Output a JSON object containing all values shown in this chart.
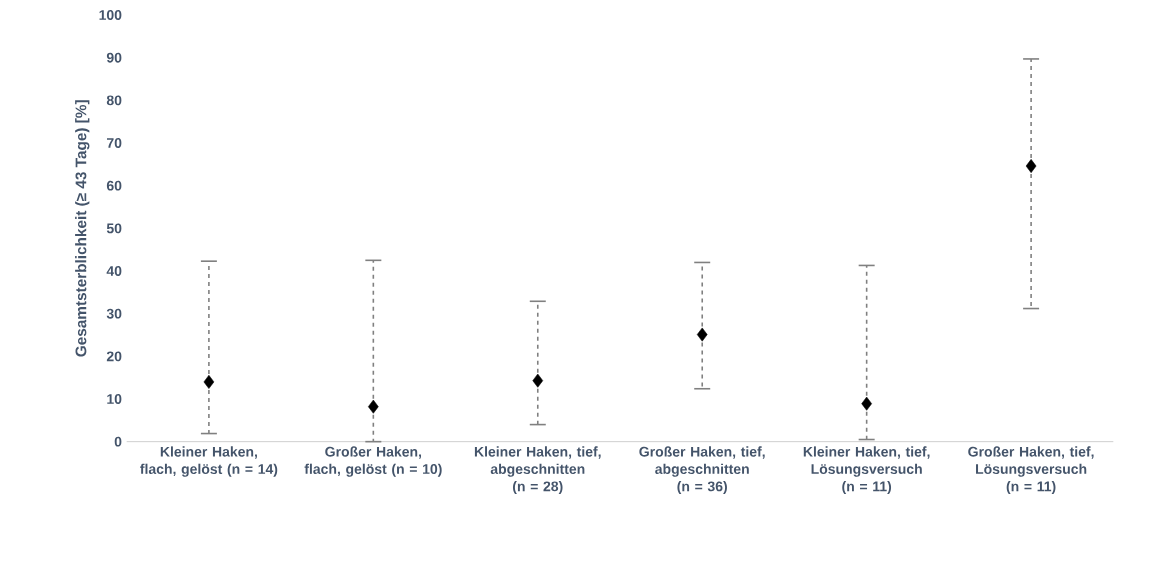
{
  "chart_data": {
    "type": "scatter",
    "ylabel": "Gesamtsterblichkeit (≥ 43 Tage)  [%]",
    "categories": [
      "Kleiner Haken, flach, gelöst (n = 14)",
      "Großer Haken, flach, gelöst (n = 10)",
      "Kleiner Haken, tief, abgeschnitten (n = 28)",
      "Großer Haken, tief, abgeschnitten (n = 36)",
      "Kleiner Haken, tief, Lösungsversuch (n = 11)",
      "Großer Haken, tief, Lösungsversuch (n = 11)"
    ],
    "series": [
      {
        "color": "#000000",
        "values": [
          14,
          8.2,
          14.3,
          25.1,
          8.9,
          64.6
        ],
        "errors": [
          [
            1.9,
            42.3
          ],
          [
            0,
            42.5
          ],
          [
            4.0,
            32.9
          ],
          [
            12.4,
            42.0
          ],
          [
            0.5,
            41.3
          ],
          [
            31.2,
            89.7
          ]
        ]
      }
    ],
    "ylim": [
      0,
      100
    ],
    "yticks": [
      0,
      10,
      20,
      30,
      40,
      50,
      60,
      70,
      80,
      90,
      100
    ],
    "marker": "diamond",
    "grid": false
  }
}
